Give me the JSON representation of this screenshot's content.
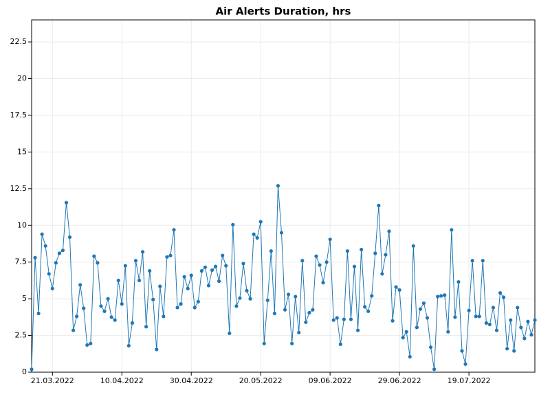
{
  "chart_data": {
    "type": "line",
    "title": "Air Alerts Duration, hrs",
    "x": [
      "15.03.2022",
      "16.03.2022",
      "17.03.2022",
      "18.03.2022",
      "19.03.2022",
      "20.03.2022",
      "21.03.2022",
      "22.03.2022",
      "23.03.2022",
      "24.03.2022",
      "25.03.2022",
      "26.03.2022",
      "27.03.2022",
      "28.03.2022",
      "29.03.2022",
      "30.03.2022",
      "31.03.2022",
      "01.04.2022",
      "02.04.2022",
      "03.04.2022",
      "04.04.2022",
      "05.04.2022",
      "06.04.2022",
      "07.04.2022",
      "08.04.2022",
      "09.04.2022",
      "10.04.2022",
      "11.04.2022",
      "12.04.2022",
      "13.04.2022",
      "14.04.2022",
      "15.04.2022",
      "16.04.2022",
      "17.04.2022",
      "18.04.2022",
      "19.04.2022",
      "20.04.2022",
      "21.04.2022",
      "22.04.2022",
      "23.04.2022",
      "24.04.2022",
      "25.04.2022",
      "26.04.2022",
      "27.04.2022",
      "28.04.2022",
      "29.04.2022",
      "30.04.2022",
      "01.05.2022",
      "02.05.2022",
      "03.05.2022",
      "04.05.2022",
      "05.05.2022",
      "06.05.2022",
      "07.05.2022",
      "08.05.2022",
      "09.05.2022",
      "10.05.2022",
      "11.05.2022",
      "12.05.2022",
      "13.05.2022",
      "14.05.2022",
      "15.05.2022",
      "16.05.2022",
      "17.05.2022",
      "18.05.2022",
      "19.05.2022",
      "20.05.2022",
      "21.05.2022",
      "22.05.2022",
      "23.05.2022",
      "24.05.2022",
      "25.05.2022",
      "26.05.2022",
      "27.05.2022",
      "28.05.2022",
      "29.05.2022",
      "30.05.2022",
      "31.05.2022",
      "01.06.2022",
      "02.06.2022",
      "03.06.2022",
      "04.06.2022",
      "05.06.2022",
      "06.06.2022",
      "07.06.2022",
      "08.06.2022",
      "09.06.2022",
      "10.06.2022",
      "11.06.2022",
      "12.06.2022",
      "13.06.2022",
      "14.06.2022",
      "15.06.2022",
      "16.06.2022",
      "17.06.2022",
      "18.06.2022",
      "19.06.2022",
      "20.06.2022",
      "21.06.2022",
      "22.06.2022",
      "23.06.2022",
      "24.06.2022",
      "25.06.2022",
      "26.06.2022",
      "27.06.2022",
      "28.06.2022",
      "29.06.2022",
      "30.06.2022",
      "01.07.2022",
      "02.07.2022",
      "03.07.2022",
      "04.07.2022",
      "05.07.2022",
      "06.07.2022",
      "07.07.2022",
      "08.07.2022",
      "09.07.2022",
      "10.07.2022",
      "11.07.2022",
      "12.07.2022",
      "13.07.2022",
      "14.07.2022",
      "15.07.2022",
      "16.07.2022",
      "17.07.2022",
      "18.07.2022",
      "19.07.2022",
      "20.07.2022",
      "21.07.2022",
      "22.07.2022",
      "23.07.2022",
      "24.07.2022",
      "25.07.2022",
      "26.07.2022",
      "27.07.2022",
      "28.07.2022",
      "29.07.2022",
      "30.07.2022",
      "31.07.2022",
      "01.08.2022",
      "02.08.2022",
      "03.08.2022",
      "04.08.2022",
      "05.08.2022",
      "06.08.2022",
      "07.08.2022"
    ],
    "values": [
      0.2,
      7.8,
      4.0,
      9.4,
      8.6,
      6.7,
      5.7,
      7.45,
      8.1,
      8.3,
      11.55,
      9.2,
      2.85,
      3.8,
      5.95,
      4.35,
      1.85,
      1.95,
      7.9,
      7.45,
      4.5,
      4.15,
      5.0,
      3.75,
      3.55,
      6.25,
      4.65,
      7.25,
      1.8,
      3.35,
      7.6,
      6.25,
      8.2,
      3.1,
      6.9,
      4.95,
      1.55,
      5.85,
      3.8,
      7.85,
      7.95,
      9.7,
      4.4,
      4.65,
      6.5,
      5.7,
      6.6,
      4.4,
      4.8,
      6.9,
      7.15,
      5.9,
      6.95,
      7.2,
      6.2,
      7.95,
      7.25,
      2.65,
      10.05,
      4.5,
      5.05,
      7.4,
      5.55,
      5.0,
      9.4,
      9.15,
      10.25,
      1.95,
      4.9,
      8.25,
      4.0,
      12.7,
      9.5,
      4.25,
      5.3,
      1.95,
      5.15,
      2.7,
      7.6,
      3.4,
      4.05,
      4.25,
      7.9,
      7.3,
      6.1,
      7.5,
      9.05,
      3.55,
      3.7,
      1.9,
      3.6,
      8.25,
      3.6,
      7.2,
      2.85,
      8.35,
      4.45,
      4.15,
      5.2,
      8.1,
      11.35,
      6.7,
      8.0,
      9.6,
      3.5,
      5.8,
      5.6,
      2.35,
      2.75,
      1.05,
      8.6,
      3.05,
      4.3,
      4.7,
      3.7,
      1.7,
      0.2,
      5.15,
      5.2,
      5.25,
      2.75,
      9.7,
      3.75,
      6.15,
      1.45,
      0.55,
      4.2,
      7.6,
      3.8,
      3.8,
      7.6,
      3.35,
      3.25,
      4.4,
      2.85,
      5.4,
      5.1,
      1.6,
      3.55,
      1.45,
      4.4,
      3.05,
      2.3,
      3.45,
      2.55,
      3.55
    ],
    "color": "#1f77b4",
    "xlim": [
      "15.03.2022",
      "07.08.2022"
    ],
    "xticks": [
      "21.03.2022",
      "10.04.2022",
      "30.04.2022",
      "20.05.2022",
      "09.06.2022",
      "29.06.2022",
      "19.07.2022"
    ],
    "ylim": [
      0,
      24
    ],
    "yticks": [
      0,
      2.5,
      5,
      7.5,
      10,
      12.5,
      15,
      17.5,
      20,
      22.5
    ],
    "grid": true
  }
}
